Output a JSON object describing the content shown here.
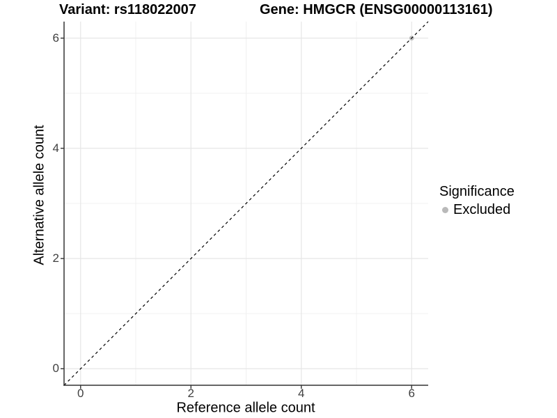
{
  "header": {
    "variant_title": "Variant: rs118022007",
    "gene_title": "Gene: HMGCR (ENSG00000113161)"
  },
  "chart_data": {
    "type": "scatter",
    "title_left": "Variant: rs118022007",
    "title_right": "Gene: HMGCR (ENSG00000113161)",
    "xlabel": "Reference allele count",
    "ylabel": "Alternative allele count",
    "xlim": [
      -0.3,
      6.3
    ],
    "ylim": [
      -0.3,
      6.3
    ],
    "x_major_ticks": [
      0,
      2,
      4,
      6
    ],
    "x_minor_ticks": [
      1,
      3,
      5
    ],
    "y_major_ticks": [
      0,
      2,
      4,
      6
    ],
    "y_minor_ticks": [
      1,
      3,
      5
    ],
    "grid": "on",
    "legend_position": "right",
    "identity_line": {
      "style": "dashed",
      "x": [
        -0.3,
        6.3
      ],
      "y": [
        -0.3,
        6.3
      ],
      "color": "#000000"
    },
    "series": [
      {
        "name": "Excluded",
        "color": "#bdbdbd",
        "points": [
          {
            "x": 6,
            "y": 6
          }
        ]
      }
    ],
    "legend": {
      "title": "Significance",
      "items": [
        {
          "label": "Excluded",
          "color": "#b9b9b9",
          "marker": "circle"
        }
      ]
    },
    "colors": {
      "grid_major": "#e6e6e6",
      "grid_minor": "#f0f0f0",
      "axis_line": "#333333",
      "tick_mark": "#333333",
      "tick_text": "#404040"
    }
  }
}
